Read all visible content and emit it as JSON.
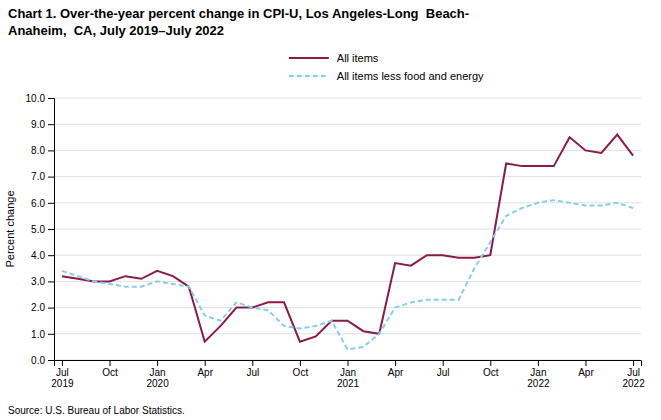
{
  "chart_data": {
    "type": "line",
    "title": "Chart 1. Over-the-year percent change in CPI-U, Los Angeles-Long  Beach-\nAnaheim,  CA, July 2019–July 2022",
    "ylabel": "Percent change",
    "source": "Source: U.S. Bureau of Labor Statistics.",
    "categories": [
      "Jul\n2019",
      null,
      null,
      "Oct",
      null,
      null,
      "Jan\n2020",
      null,
      null,
      "Apr",
      null,
      null,
      "Jul",
      null,
      null,
      "Oct",
      null,
      null,
      "Jan\n2021",
      null,
      null,
      "Apr",
      null,
      null,
      "Jul",
      null,
      null,
      "Oct",
      null,
      null,
      "Jan\n2022",
      null,
      null,
      "Apr",
      null,
      null,
      "Jul\n2022"
    ],
    "series": [
      {
        "name": "All items",
        "color": "#8B1A4A",
        "line_style": "solid",
        "values": [
          3.2,
          3.1,
          3.0,
          3.0,
          3.2,
          3.1,
          3.4,
          3.2,
          2.8,
          0.7,
          1.3,
          2.0,
          2.0,
          2.2,
          2.2,
          0.7,
          0.9,
          1.5,
          1.5,
          1.1,
          1.0,
          3.7,
          3.6,
          4.0,
          4.0,
          3.9,
          3.9,
          4.0,
          7.5,
          7.4,
          7.4,
          7.4,
          8.5,
          8.0,
          7.9,
          8.6,
          7.8
        ]
      },
      {
        "name": "All items less food and energy",
        "color": "#87CEEB",
        "line_style": "dashed",
        "values": [
          3.4,
          3.2,
          3.0,
          2.9,
          2.8,
          2.8,
          3.0,
          2.9,
          2.8,
          1.7,
          1.5,
          2.2,
          2.0,
          1.9,
          1.3,
          1.2,
          1.3,
          1.5,
          0.4,
          0.5,
          1.0,
          2.0,
          2.2,
          2.3,
          2.3,
          2.3,
          3.5,
          4.5,
          5.5,
          5.8,
          6.0,
          6.1,
          6.0,
          5.9,
          5.9,
          6.0,
          5.8
        ]
      }
    ],
    "ylim": [
      0.0,
      10.0
    ],
    "yticks": [
      {
        "value": 0,
        "label": "0.0"
      },
      {
        "value": 1,
        "label": "1.0"
      },
      {
        "value": 2,
        "label": "2.0"
      },
      {
        "value": 3,
        "label": "3.0"
      },
      {
        "value": 4,
        "label": "4.0"
      },
      {
        "value": 5,
        "label": "5.0"
      },
      {
        "value": 6,
        "label": "6.0"
      },
      {
        "value": 7,
        "label": "7.0"
      },
      {
        "value": 8,
        "label": "8.0"
      },
      {
        "value": 9,
        "label": "9.0"
      },
      {
        "value": 10,
        "label": "10.0"
      }
    ],
    "grid": true,
    "legend": "top"
  }
}
